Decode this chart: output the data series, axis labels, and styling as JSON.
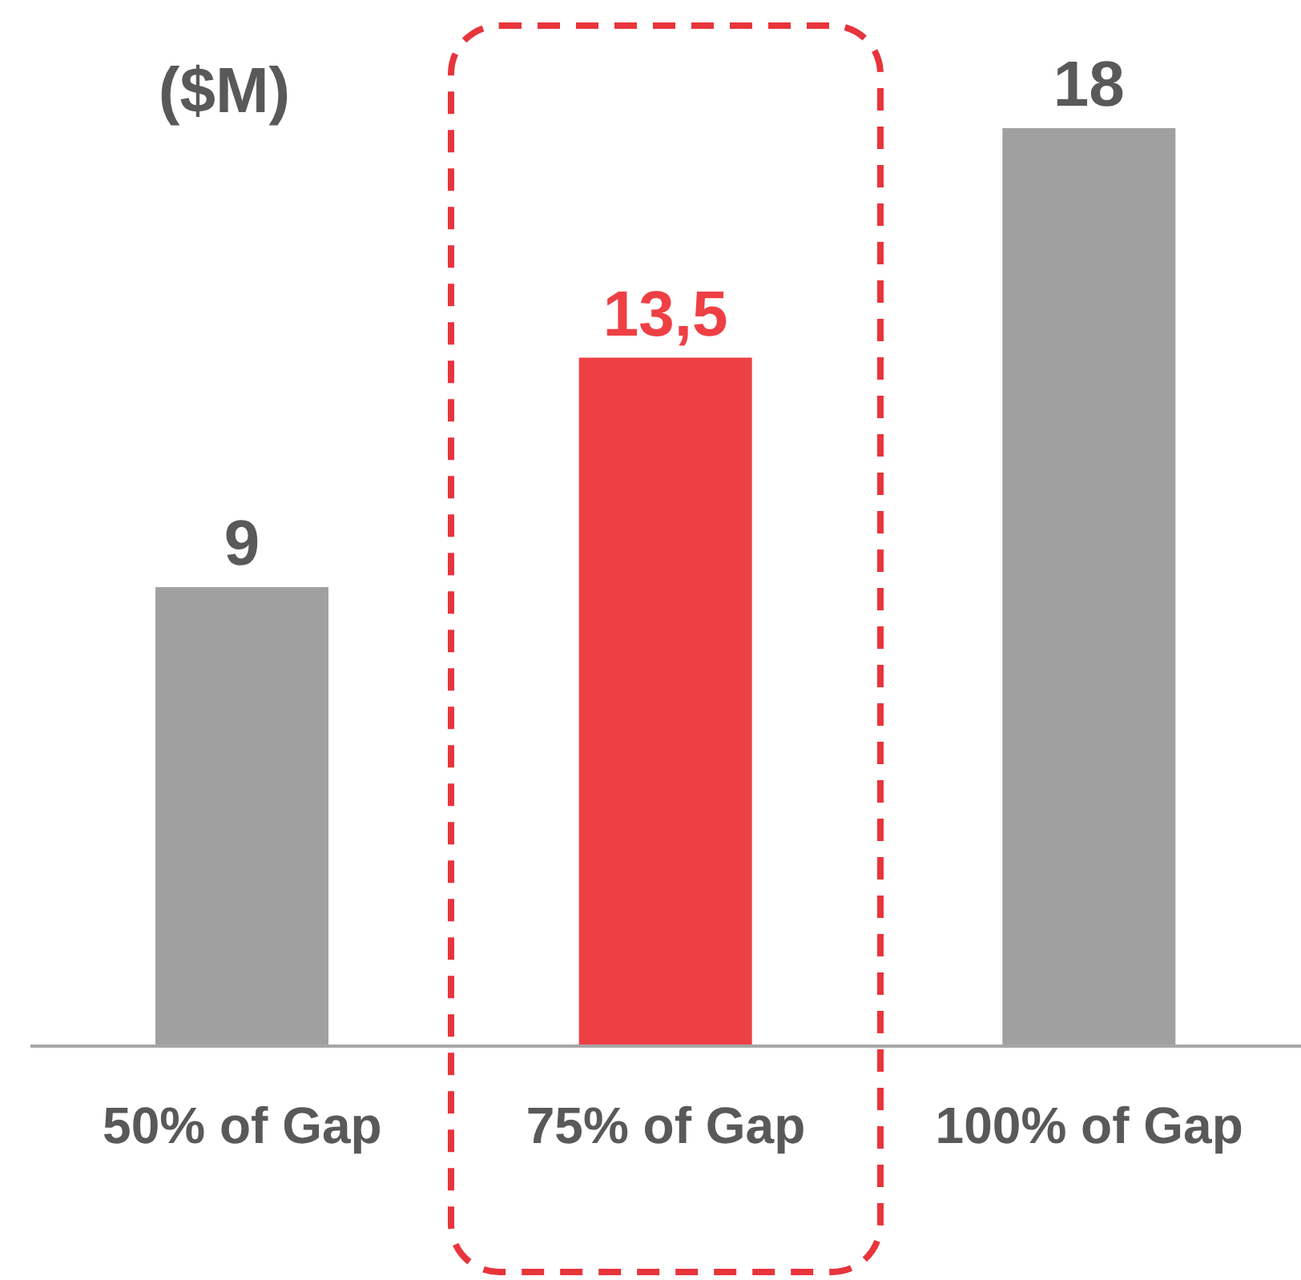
{
  "chart_data": {
    "type": "bar",
    "ylabel": "($M)",
    "categories": [
      "50% of Gap",
      "75% of Gap",
      "100% of Gap"
    ],
    "values": [
      9,
      13.5,
      18
    ],
    "colors": [
      "#a0a0a0",
      "#ee4044",
      "#a0a0a0"
    ],
    "value_labels": [
      "9",
      "13,5",
      "18"
    ]
  }
}
